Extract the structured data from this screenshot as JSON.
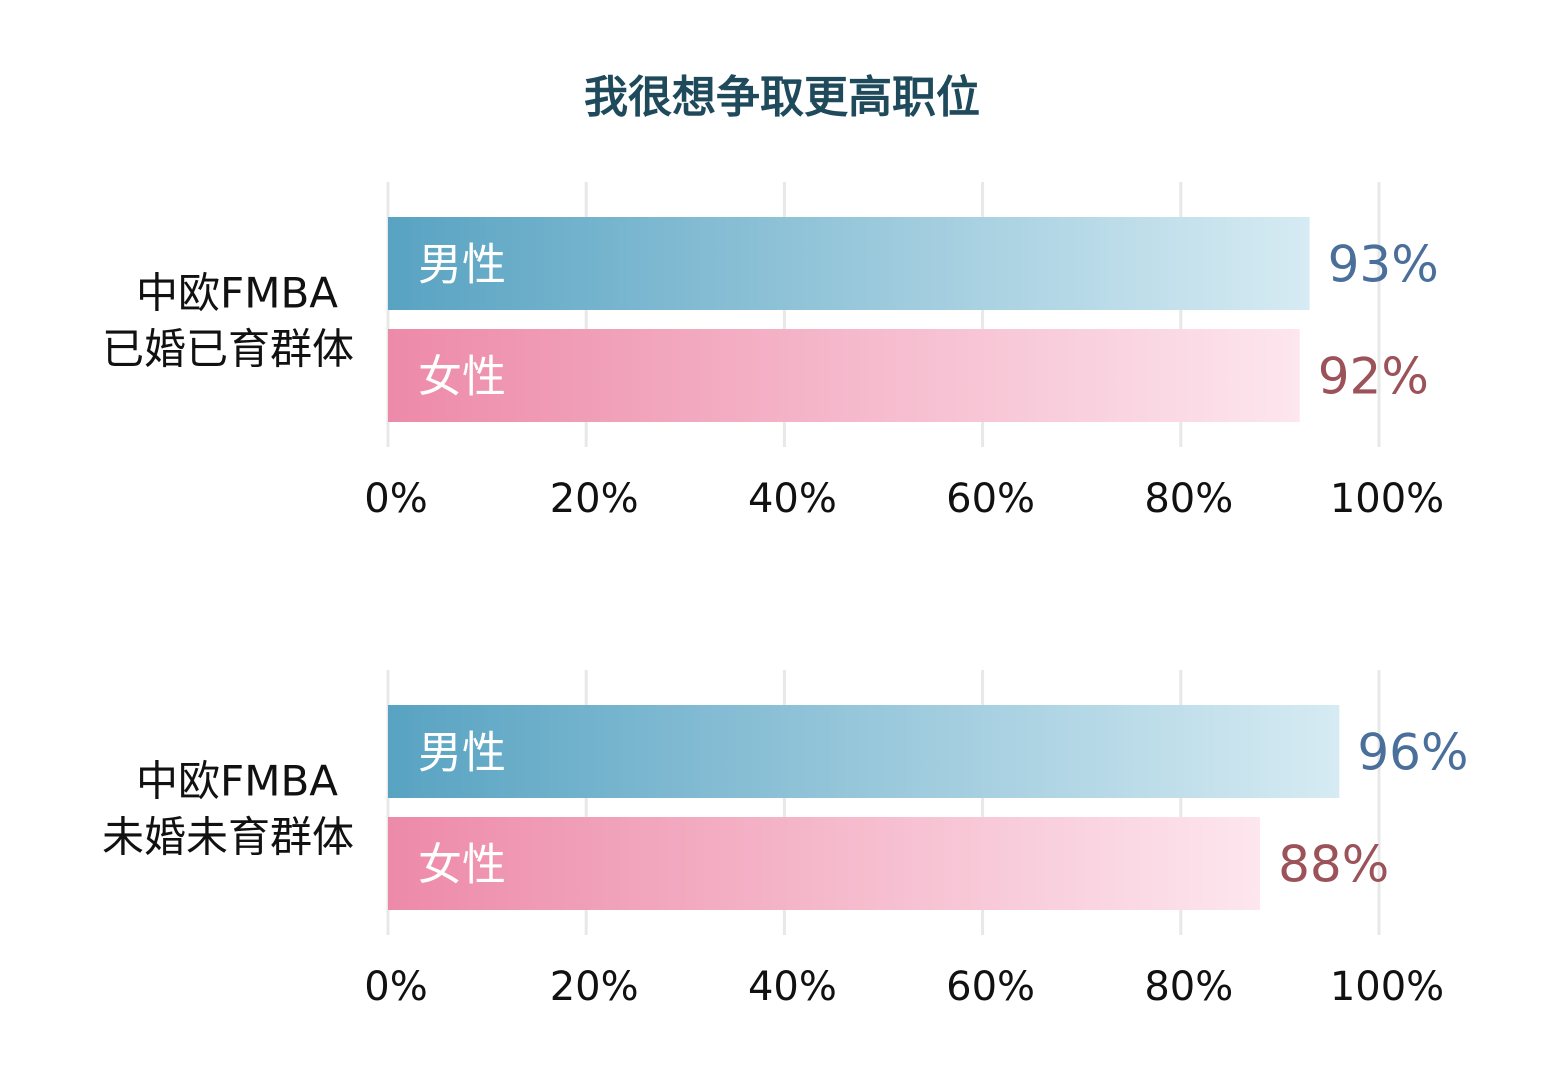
{
  "title": "我很想争取更高职位",
  "colors": {
    "title": "#1e4a5c",
    "grid": "#e8e8e8",
    "male_start": "#58a3c2",
    "male_end": "#d6ebf3",
    "female_start": "#ed8aa9",
    "female_end": "#fde6ee",
    "male_value": "#4a6f9a",
    "female_value": "#9b5258",
    "bar_label": "#ffffff",
    "tick": "#111111",
    "group_label": "#111111"
  },
  "chart_data": [
    {
      "type": "bar",
      "orientation": "horizontal",
      "group_label_lines": [
        "中欧FMBA",
        "已婚已育群体"
      ],
      "categories": [
        "男性",
        "女性"
      ],
      "values": [
        93,
        92
      ],
      "value_labels": [
        "93%",
        "92%"
      ],
      "series_colors": [
        "male",
        "female"
      ],
      "xlim": [
        0,
        100
      ],
      "xticks": [
        "0%",
        "20%",
        "40%",
        "60%",
        "80%",
        "100%"
      ],
      "grid": true
    },
    {
      "type": "bar",
      "orientation": "horizontal",
      "group_label_lines": [
        "中欧FMBA",
        "未婚未育群体"
      ],
      "categories": [
        "男性",
        "女性"
      ],
      "values": [
        96,
        88
      ],
      "value_labels": [
        "96%",
        "88%"
      ],
      "series_colors": [
        "male",
        "female"
      ],
      "xlim": [
        0,
        100
      ],
      "xticks": [
        "0%",
        "20%",
        "40%",
        "60%",
        "80%",
        "100%"
      ],
      "grid": true
    }
  ]
}
